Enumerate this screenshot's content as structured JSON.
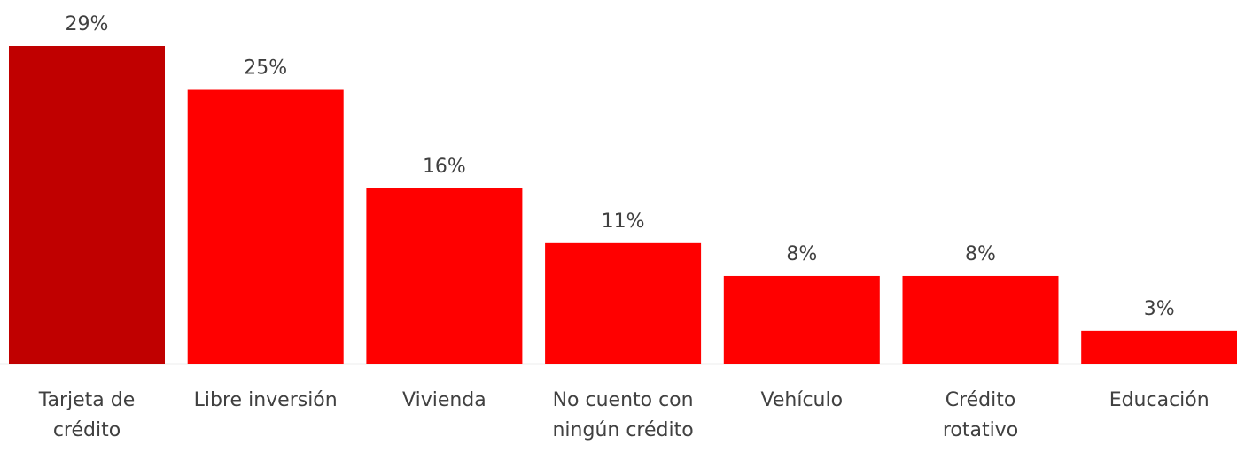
{
  "chart_data": {
    "type": "bar",
    "categories": [
      "Tarjeta de\ncrédito",
      "Libre inversión",
      "Vivienda",
      "No cuento con\nningún crédito",
      "Vehículo",
      "Crédito\nrotativo",
      "Educación"
    ],
    "values": [
      29,
      25,
      16,
      11,
      8,
      8,
      3
    ],
    "value_labels": [
      "29%",
      "25%",
      "16%",
      "11%",
      "8%",
      "8%",
      "3%"
    ],
    "colors": [
      "#c00000",
      "#ff0000",
      "#ff0000",
      "#ff0000",
      "#ff0000",
      "#ff0000",
      "#ff0000"
    ]
  }
}
